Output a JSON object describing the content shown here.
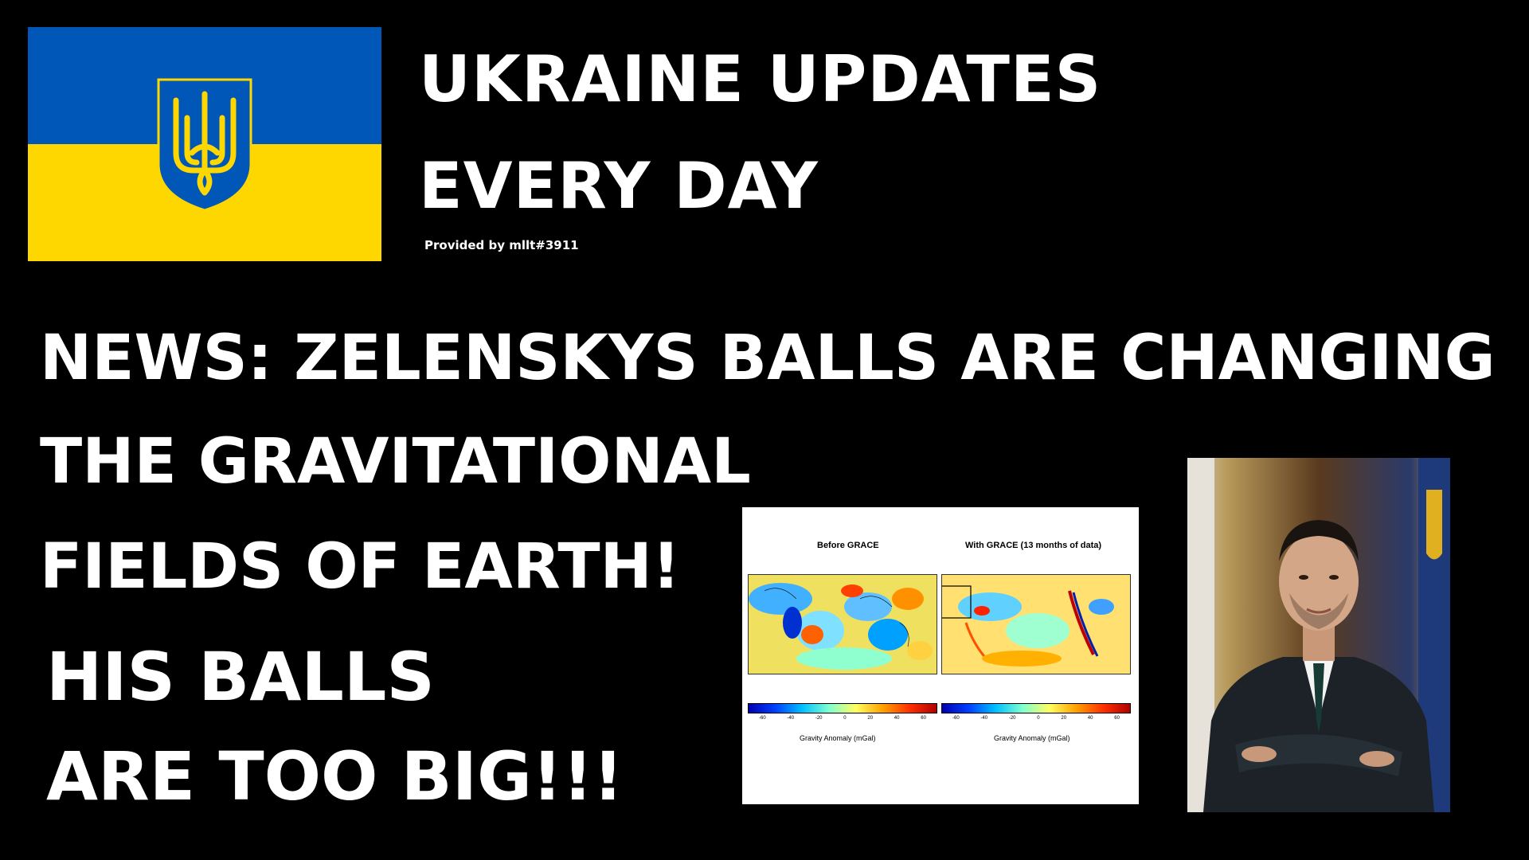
{
  "header": {
    "title_line1": "UKRAINE UPDATES",
    "title_line2": "EVERY DAY",
    "provided_by": "Provided by mllt#3911"
  },
  "flag": {
    "top_color": "#0057b7",
    "bottom_color": "#ffd700",
    "emblem": "trident-icon"
  },
  "headline": {
    "line1": "NEWS: ZELENSKYS BALLS ARE CHANGING",
    "line2": "THE GRAVITATIONAL",
    "line3": "FIELDS OF EARTH!"
  },
  "subline": {
    "line1": "HIS BALLS",
    "line2": "ARE TOO BIG!!!"
  },
  "figure": {
    "left_title": "Before GRACE",
    "right_title": "With GRACE (13 months of data)",
    "ticks_left": [
      "-60",
      "-40",
      "-20",
      "0",
      "20",
      "40",
      "60"
    ],
    "ticks_right": [
      "-60",
      "-40",
      "-20",
      "0",
      "20",
      "40",
      "60"
    ],
    "axis_label_left": "Gravity Anomaly (mGal)",
    "axis_label_right": "Gravity Anomaly (mGal)"
  }
}
